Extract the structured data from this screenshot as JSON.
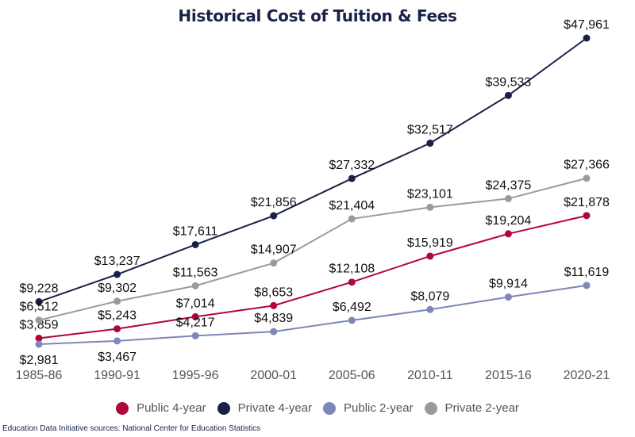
{
  "chart_data": {
    "type": "line",
    "title": "Historical Cost of Tuition & Fees",
    "categories": [
      "1985-86",
      "1990-91",
      "1995-96",
      "2000-01",
      "2005-06",
      "2010-11",
      "2015-16",
      "2020-21"
    ],
    "ylim": [
      0,
      50000
    ],
    "grid": false,
    "legend": "bottom",
    "series": [
      {
        "name": "Public 4-year",
        "color": "#b0073b",
        "values": [
          3859,
          5243,
          7014,
          8653,
          12108,
          15919,
          19204,
          21878
        ],
        "labels": [
          "$3,859",
          "$5,243",
          "$7,014",
          "$8,653",
          "$12,108",
          "$15,919",
          "$19,204",
          "$21,878"
        ]
      },
      {
        "name": "Private 4-year",
        "color": "#1a2147",
        "values": [
          9228,
          13237,
          17611,
          21856,
          27332,
          32517,
          39533,
          47961
        ],
        "labels": [
          "$9,228",
          "$13,237",
          "$17,611",
          "$21,856",
          "$27,332",
          "$32,517",
          "$39,533",
          "$47,961"
        ]
      },
      {
        "name": "Public 2-year",
        "color": "#7d87b9",
        "values": [
          2981,
          3467,
          4217,
          4839,
          6492,
          8079,
          9914,
          11619
        ],
        "labels": [
          "$2,981",
          "$3,467",
          "$4,217",
          "$4,839",
          "$6,492",
          "$8,079",
          "$9,914",
          "$11,619"
        ]
      },
      {
        "name": "Private 2-year",
        "color": "#9b9b9b",
        "values": [
          6512,
          9302,
          11563,
          14907,
          21404,
          23101,
          24375,
          27366
        ],
        "labels": [
          "$6,512",
          "$9,302",
          "$11,563",
          "$14,907",
          "$21,404",
          "$23,101",
          "$24,375",
          "$27,366"
        ]
      }
    ],
    "source": "Education Data Initiative sources: National Center for Education Statistics"
  }
}
